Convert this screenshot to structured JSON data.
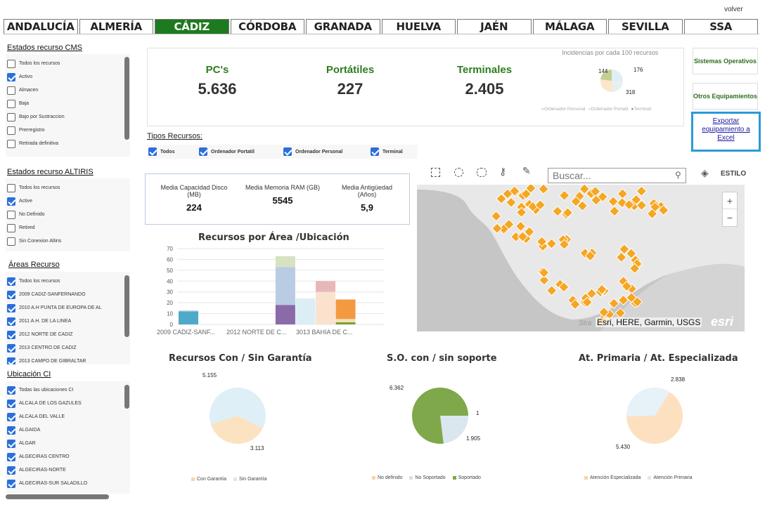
{
  "volver": "volver",
  "tabs": [
    "ANDALUCÍA",
    "ALMERÍA",
    "CÁDIZ",
    "CÓRDOBA",
    "GRANADA",
    "HUELVA",
    "JAÉN",
    "MÁLAGA",
    "SEVILLA",
    "SSA"
  ],
  "active_tab": "CÁDIZ",
  "filters": {
    "cms": {
      "title": "Estados recurso CMS",
      "items": [
        {
          "label": "Todos los recursos",
          "checked": false
        },
        {
          "label": "Activo",
          "checked": true
        },
        {
          "label": "Almacen",
          "checked": false
        },
        {
          "label": "Baja",
          "checked": false
        },
        {
          "label": "Bajo por Sustraccion",
          "checked": false
        },
        {
          "label": "Prerregistro",
          "checked": false
        },
        {
          "label": "Retirada definitiva",
          "checked": false
        }
      ]
    },
    "altiris": {
      "title": "Estados recurso ALTIRIS",
      "items": [
        {
          "label": "Todos los recursos",
          "checked": false
        },
        {
          "label": "Active",
          "checked": true
        },
        {
          "label": "No Definido",
          "checked": false
        },
        {
          "label": "Retired",
          "checked": false
        },
        {
          "label": "Sin Conexion Altiris",
          "checked": false
        }
      ]
    },
    "areas": {
      "title": "Áreas Recurso",
      "items": [
        {
          "label": "Todos los recursos",
          "checked": true
        },
        {
          "label": "2009 CADIZ-SANFERNANDO",
          "checked": true
        },
        {
          "label": "2010 A.H PUNTA DE EUROPA DE AL",
          "checked": true
        },
        {
          "label": "2011 A.H. DE LA LINEA",
          "checked": true
        },
        {
          "label": "2012 NORTE DE CADIZ",
          "checked": true
        },
        {
          "label": "2013 CENTRO DE CADIZ",
          "checked": true
        },
        {
          "label": "2013 CAMPO DE GIBRALTAR",
          "checked": true
        }
      ]
    },
    "ubicacion": {
      "title": "Ubicación CI",
      "items": [
        {
          "label": "Todas las ubicaciones CI",
          "checked": true
        },
        {
          "label": "ALCALA DE LOS GAZULES",
          "checked": true
        },
        {
          "label": "ALCALA DEL VALLE",
          "checked": true
        },
        {
          "label": "ALGAIDA",
          "checked": true
        },
        {
          "label": "ALGAR",
          "checked": true
        },
        {
          "label": "ALGECIRAS CENTRO",
          "checked": true
        },
        {
          "label": "ALGECIRAS-NORTE",
          "checked": true
        },
        {
          "label": "ALGECIRAS-SUR SALADILLO",
          "checked": true
        }
      ]
    }
  },
  "kpis": [
    {
      "label": "PC's",
      "value": "5.636"
    },
    {
      "label": "Portátiles",
      "value": "227"
    },
    {
      "label": "Terminales",
      "value": "2.405"
    }
  ],
  "incidencias": {
    "title": "Incidencias por cada 100 recursos",
    "labels": [
      "144",
      "176",
      "318"
    ],
    "legend": [
      "Ordenador Personal",
      "Ordenador Portatil",
      "Terminal"
    ]
  },
  "buttons": {
    "so": "Sistemas Operativos",
    "otros": "Otros Equipamientos",
    "export": "Exportar equipamiento a Excel"
  },
  "tipos": {
    "title": "Tipos Recursos:",
    "items": [
      {
        "label": "Todos",
        "checked": true
      },
      {
        "label": "Ordenador Portatil",
        "checked": true
      },
      {
        "label": "Ordenador Personal",
        "checked": true
      },
      {
        "label": "Terminal",
        "checked": true
      }
    ]
  },
  "stats": [
    {
      "label": "Media Capacidad Disco (MB)",
      "value": "224"
    },
    {
      "label": "Media Memoria RAM (GB)",
      "value": "5545"
    },
    {
      "label": "Media Antigüedad (Años)",
      "value": "5,9"
    }
  ],
  "map": {
    "search_placeholder": "Buscar...",
    "estilo": "ESTILO",
    "zoom_in": "+",
    "zoom_out": "−",
    "attribution": "Esri, HERE, Garmin, USGS",
    "logo": "esri",
    "faded": "Stra"
  },
  "chart_data": [
    {
      "type": "bar",
      "title": "Recursos por Área /Ubicación",
      "categories": [
        "2009 CADIZ-SANF...",
        "2012 NORTE DE C...",
        "3013 BAHIA DE C..."
      ],
      "yticks": [
        0,
        10,
        20,
        30,
        40,
        50,
        60,
        70
      ],
      "ylim": [
        0,
        70
      ],
      "bars": [
        {
          "category": 0,
          "stack": [
            {
              "value": 12,
              "color": "#4fa9c9"
            },
            {
              "value": 1,
              "color": "#c9d9e8"
            }
          ]
        },
        {
          "category": 2,
          "stack": [
            {
              "value": 18,
              "color": "#8a6aa8"
            },
            {
              "value": 35,
              "color": "#b8cce4"
            },
            {
              "value": 10,
              "color": "#d7e3c0"
            }
          ]
        },
        {
          "category": 2.3,
          "stack": [
            {
              "value": 24,
              "color": "#dbeef5"
            }
          ]
        },
        {
          "category": 2.6,
          "stack": [
            {
              "value": 30,
              "color": "#fbe2cf"
            },
            {
              "value": 10,
              "color": "#e8b8b8"
            }
          ]
        },
        {
          "category": 2.9,
          "stack": [
            {
              "value": 2,
              "color": "#7aa03a"
            },
            {
              "value": 3,
              "color": "#f3e1b0"
            },
            {
              "value": 18,
              "color": "#f39a40"
            }
          ]
        }
      ]
    },
    {
      "type": "pie",
      "title": "Recursos Con / Sin Garantía",
      "slices": [
        {
          "name": "Con Garantía",
          "value": 3113,
          "label": "3.113",
          "color": "#fbe2c0"
        },
        {
          "name": "Sin Garantía",
          "value": 5155,
          "label": "5.155",
          "color": "#dfeff8"
        }
      ]
    },
    {
      "type": "pie",
      "title": "S.O. con / sin soporte",
      "slices": [
        {
          "name": "No definido",
          "value": 1,
          "label": "1",
          "color": "#f7d8a8"
        },
        {
          "name": "No Soportado",
          "value": 1905,
          "label": "1.905",
          "color": "#dbe7ef"
        },
        {
          "name": "Soportado",
          "value": 6362,
          "label": "6.362",
          "color": "#7ea84a"
        }
      ]
    },
    {
      "type": "pie",
      "title": "At. Primaria / At. Especializada",
      "slices": [
        {
          "name": "Atención Especializada",
          "value": 5430,
          "label": "5.430",
          "color": "#fde0c0"
        },
        {
          "name": "Atención Primaria",
          "value": 2838,
          "label": "2.838",
          "color": "#e6f1f8"
        }
      ]
    }
  ]
}
